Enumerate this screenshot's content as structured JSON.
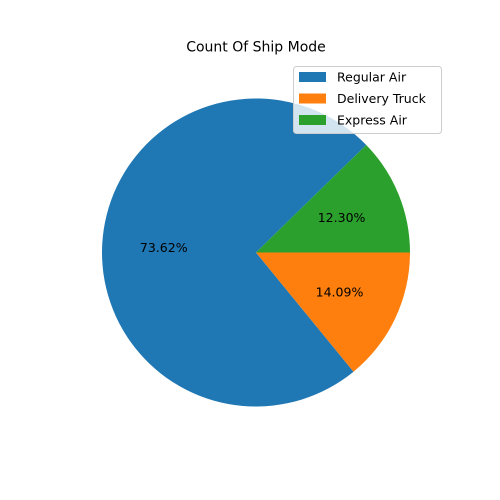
{
  "chart_data": {
    "type": "pie",
    "title": "Count Of Ship Mode",
    "labels": [
      "Regular Air",
      "Delivery Truck",
      "Express Air"
    ],
    "values": [
      73.62,
      14.09,
      12.3
    ],
    "value_labels": [
      "73.62%",
      "14.09%",
      "12.30%"
    ],
    "colors": [
      "#1f77b4",
      "#ff7f0e",
      "#2ca02c"
    ],
    "start_angle_deg": 44.28,
    "direction": "counterclockwise",
    "legend_position": "upper-right"
  }
}
